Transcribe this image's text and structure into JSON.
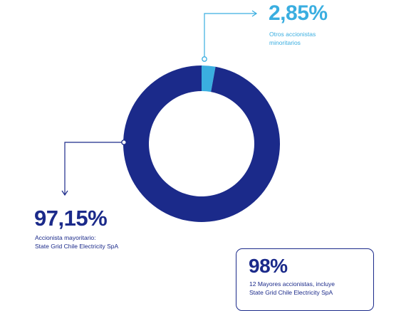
{
  "chart_data": {
    "type": "pie",
    "donut": true,
    "slices": [
      {
        "value": 2.85,
        "value_label": "2,85%",
        "label_lines": [
          "Otros accionistas",
          "minoritarios"
        ],
        "color": "#3aaee0"
      },
      {
        "value": 97.15,
        "value_label": "97,15%",
        "label_lines": [
          "Accionista mayoritario:",
          "State Grid Chile Electricity SpA"
        ],
        "color": "#1b2a8a"
      }
    ],
    "callout": {
      "value_label": "98%",
      "label_lines": [
        "12 Mayores accionistas, incluye",
        "State Grid Chile Electricity SpA"
      ]
    }
  },
  "colors": {
    "accent": "#3aaee0",
    "brand": "#1b2a8a"
  }
}
